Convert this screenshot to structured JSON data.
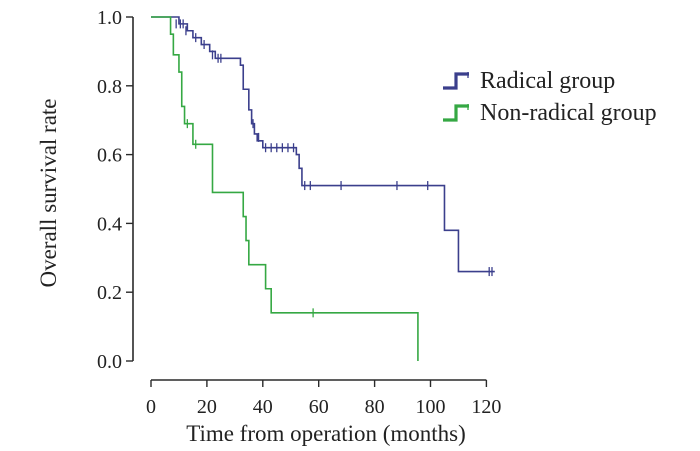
{
  "chart_data": {
    "type": "line",
    "subtype": "kaplan-meier",
    "title": "",
    "xlabel": "Time from operation (months)",
    "ylabel": "Overall survival rate",
    "xlim": [
      0,
      125
    ],
    "ylim": [
      0,
      1.0
    ],
    "xticks": [
      0,
      20,
      40,
      60,
      80,
      100,
      120
    ],
    "xtick_labels": [
      "0",
      "20",
      "40",
      "60",
      "80",
      "100",
      "120"
    ],
    "yticks": [
      0.0,
      0.2,
      0.4,
      0.6,
      0.8,
      1.0
    ],
    "ytick_labels": [
      "0.0",
      "0.2",
      "0.4",
      "0.6",
      "0.8",
      "1.0"
    ],
    "legend_position": "top-right",
    "series": [
      {
        "name": "Radical group",
        "color": "#3b3f8c",
        "steps": [
          [
            0,
            1.0
          ],
          [
            10,
            0.98
          ],
          [
            13,
            0.96
          ],
          [
            15,
            0.94
          ],
          [
            18,
            0.92
          ],
          [
            21,
            0.9
          ],
          [
            23,
            0.88
          ],
          [
            32,
            0.86
          ],
          [
            33,
            0.79
          ],
          [
            35,
            0.73
          ],
          [
            36,
            0.69
          ],
          [
            37,
            0.66
          ],
          [
            38,
            0.64
          ],
          [
            40,
            0.62
          ],
          [
            52,
            0.6
          ],
          [
            53,
            0.56
          ],
          [
            54,
            0.51
          ],
          [
            104,
            0.51
          ],
          [
            105,
            0.38
          ],
          [
            110,
            0.26
          ],
          [
            123,
            0.26
          ]
        ],
        "censored": [
          [
            9,
            0.98
          ],
          [
            10.5,
            0.98
          ],
          [
            11.5,
            0.98
          ],
          [
            12.5,
            0.96
          ],
          [
            16,
            0.94
          ],
          [
            19,
            0.92
          ],
          [
            22,
            0.89
          ],
          [
            24,
            0.88
          ],
          [
            25,
            0.88
          ],
          [
            36.5,
            0.69
          ],
          [
            38.5,
            0.65
          ],
          [
            41,
            0.62
          ],
          [
            43,
            0.62
          ],
          [
            45,
            0.62
          ],
          [
            47,
            0.62
          ],
          [
            49,
            0.62
          ],
          [
            51,
            0.62
          ],
          [
            55,
            0.51
          ],
          [
            57,
            0.51
          ],
          [
            68,
            0.51
          ],
          [
            88,
            0.51
          ],
          [
            99,
            0.51
          ],
          [
            121,
            0.26
          ],
          [
            122,
            0.26
          ]
        ]
      },
      {
        "name": "Non-radical group",
        "color": "#35a843",
        "steps": [
          [
            0,
            1.0
          ],
          [
            7,
            0.95
          ],
          [
            8,
            0.89
          ],
          [
            10,
            0.84
          ],
          [
            11,
            0.74
          ],
          [
            12,
            0.69
          ],
          [
            15,
            0.63
          ],
          [
            22,
            0.49
          ],
          [
            33,
            0.42
          ],
          [
            34,
            0.35
          ],
          [
            35,
            0.28
          ],
          [
            41,
            0.21
          ],
          [
            43,
            0.14
          ],
          [
            95.5,
            0.14
          ],
          [
            95.5,
            0.0
          ]
        ],
        "censored": [
          [
            13,
            0.69
          ],
          [
            16,
            0.63
          ],
          [
            58,
            0.14
          ]
        ]
      }
    ]
  }
}
